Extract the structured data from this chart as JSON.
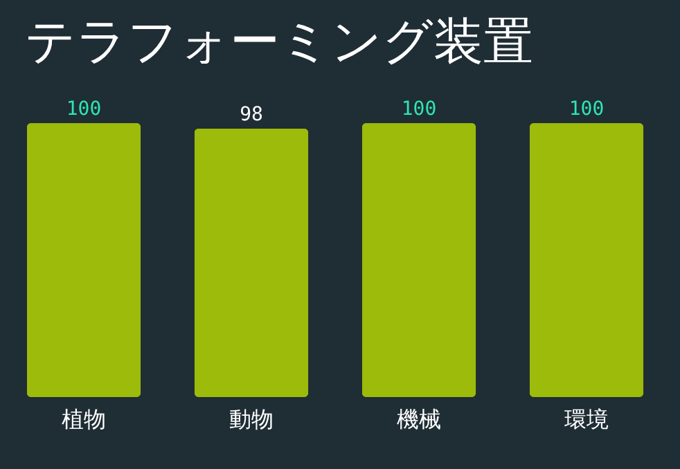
{
  "chart_data": {
    "type": "bar",
    "title": "テラフォーミング装置",
    "categories": [
      "植物",
      "動物",
      "機械",
      "環境"
    ],
    "values": [
      100,
      98,
      100,
      100
    ],
    "color": "#9cbb0b",
    "ylim": [
      0,
      100
    ],
    "data_labels": true,
    "grid": false
  }
}
